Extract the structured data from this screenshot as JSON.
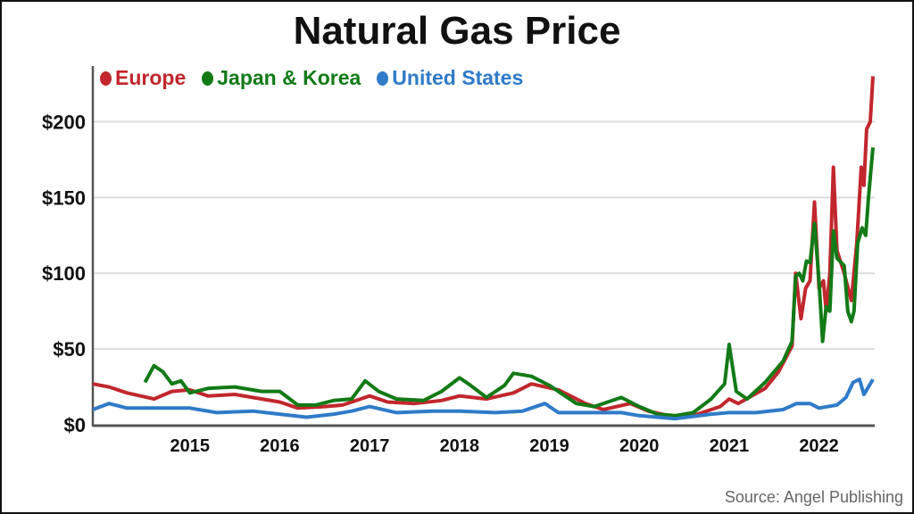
{
  "chart_data": {
    "type": "line",
    "title": "Natural Gas Price",
    "source": "Source: Angel Publishing",
    "xlabel": "",
    "ylabel": "",
    "xlim": [
      2013.92,
      2022.62
    ],
    "ylim": [
      0,
      235
    ],
    "grid": true,
    "legend_placement": "top-left",
    "y_ticks": [
      {
        "v": 0,
        "label": "$0"
      },
      {
        "v": 50,
        "label": "$50"
      },
      {
        "v": 100,
        "label": "$100"
      },
      {
        "v": 150,
        "label": "$150"
      },
      {
        "v": 200,
        "label": "$200"
      }
    ],
    "x_ticks": [
      {
        "v": 2015,
        "label": "2015"
      },
      {
        "v": 2016,
        "label": "2016"
      },
      {
        "v": 2017,
        "label": "2017"
      },
      {
        "v": 2018,
        "label": "2018"
      },
      {
        "v": 2019,
        "label": "2019"
      },
      {
        "v": 2020,
        "label": "2020"
      },
      {
        "v": 2021,
        "label": "2021"
      },
      {
        "v": 2022,
        "label": "2022"
      }
    ],
    "series": [
      {
        "name": "Europe",
        "color": "#c1272d",
        "points": [
          [
            2013.92,
            27
          ],
          [
            2014.1,
            25
          ],
          [
            2014.3,
            21
          ],
          [
            2014.6,
            17
          ],
          [
            2014.8,
            22
          ],
          [
            2015.0,
            23
          ],
          [
            2015.2,
            19
          ],
          [
            2015.5,
            20
          ],
          [
            2015.8,
            17
          ],
          [
            2016.0,
            15
          ],
          [
            2016.2,
            11
          ],
          [
            2016.5,
            12
          ],
          [
            2016.7,
            13
          ],
          [
            2016.9,
            17
          ],
          [
            2017.0,
            19
          ],
          [
            2017.2,
            15
          ],
          [
            2017.5,
            14
          ],
          [
            2017.8,
            16
          ],
          [
            2018.0,
            19
          ],
          [
            2018.3,
            17
          ],
          [
            2018.6,
            21
          ],
          [
            2018.8,
            27
          ],
          [
            2019.1,
            23
          ],
          [
            2019.4,
            14
          ],
          [
            2019.6,
            10
          ],
          [
            2019.9,
            14
          ],
          [
            2020.1,
            9
          ],
          [
            2020.4,
            5
          ],
          [
            2020.6,
            6
          ],
          [
            2020.9,
            12
          ],
          [
            2021.0,
            17
          ],
          [
            2021.1,
            14
          ],
          [
            2021.4,
            24
          ],
          [
            2021.55,
            35
          ],
          [
            2021.7,
            52
          ],
          [
            2021.74,
            100
          ],
          [
            2021.8,
            70
          ],
          [
            2021.85,
            90
          ],
          [
            2021.9,
            95
          ],
          [
            2021.95,
            147
          ],
          [
            2022.0,
            90
          ],
          [
            2022.05,
            95
          ],
          [
            2022.08,
            75
          ],
          [
            2022.12,
            100
          ],
          [
            2022.16,
            170
          ],
          [
            2022.2,
            115
          ],
          [
            2022.28,
            100
          ],
          [
            2022.36,
            82
          ],
          [
            2022.42,
            120
          ],
          [
            2022.47,
            170
          ],
          [
            2022.5,
            158
          ],
          [
            2022.53,
            195
          ],
          [
            2022.57,
            200
          ],
          [
            2022.6,
            230
          ]
        ]
      },
      {
        "name": "Japan & Korea",
        "color": "#127a16",
        "points": [
          [
            2014.5,
            28
          ],
          [
            2014.6,
            39
          ],
          [
            2014.7,
            35
          ],
          [
            2014.8,
            27
          ],
          [
            2014.9,
            29
          ],
          [
            2015.0,
            21
          ],
          [
            2015.2,
            24
          ],
          [
            2015.5,
            25
          ],
          [
            2015.8,
            22
          ],
          [
            2016.0,
            22
          ],
          [
            2016.2,
            13
          ],
          [
            2016.4,
            13
          ],
          [
            2016.6,
            16
          ],
          [
            2016.8,
            17
          ],
          [
            2016.95,
            29
          ],
          [
            2017.1,
            22
          ],
          [
            2017.3,
            17
          ],
          [
            2017.6,
            16
          ],
          [
            2017.8,
            22
          ],
          [
            2018.0,
            31
          ],
          [
            2018.1,
            27
          ],
          [
            2018.3,
            18
          ],
          [
            2018.5,
            26
          ],
          [
            2018.6,
            34
          ],
          [
            2018.8,
            32
          ],
          [
            2019.0,
            26
          ],
          [
            2019.3,
            14
          ],
          [
            2019.5,
            12
          ],
          [
            2019.8,
            18
          ],
          [
            2020.0,
            12
          ],
          [
            2020.2,
            7
          ],
          [
            2020.4,
            6
          ],
          [
            2020.6,
            8
          ],
          [
            2020.8,
            17
          ],
          [
            2020.95,
            27
          ],
          [
            2021.0,
            53
          ],
          [
            2021.08,
            22
          ],
          [
            2021.2,
            17
          ],
          [
            2021.4,
            28
          ],
          [
            2021.6,
            42
          ],
          [
            2021.7,
            55
          ],
          [
            2021.74,
            98
          ],
          [
            2021.78,
            100
          ],
          [
            2021.82,
            95
          ],
          [
            2021.86,
            108
          ],
          [
            2021.9,
            107
          ],
          [
            2021.95,
            133
          ],
          [
            2022.0,
            95
          ],
          [
            2022.04,
            55
          ],
          [
            2022.08,
            78
          ],
          [
            2022.12,
            75
          ],
          [
            2022.16,
            128
          ],
          [
            2022.2,
            110
          ],
          [
            2022.28,
            105
          ],
          [
            2022.32,
            75
          ],
          [
            2022.36,
            68
          ],
          [
            2022.39,
            75
          ],
          [
            2022.43,
            120
          ],
          [
            2022.48,
            130
          ],
          [
            2022.52,
            125
          ],
          [
            2022.55,
            150
          ],
          [
            2022.6,
            183
          ]
        ]
      },
      {
        "name": "United States",
        "color": "#2f7bc8",
        "points": [
          [
            2013.92,
            10
          ],
          [
            2014.1,
            14
          ],
          [
            2014.3,
            11
          ],
          [
            2014.5,
            11
          ],
          [
            2015.0,
            11
          ],
          [
            2015.3,
            8
          ],
          [
            2015.7,
            9
          ],
          [
            2016.0,
            7
          ],
          [
            2016.3,
            5
          ],
          [
            2016.6,
            7
          ],
          [
            2016.8,
            9
          ],
          [
            2017.0,
            12
          ],
          [
            2017.3,
            8
          ],
          [
            2017.7,
            9
          ],
          [
            2018.0,
            9
          ],
          [
            2018.4,
            8
          ],
          [
            2018.7,
            9
          ],
          [
            2018.95,
            14
          ],
          [
            2019.1,
            8
          ],
          [
            2019.5,
            8
          ],
          [
            2019.8,
            8
          ],
          [
            2020.0,
            6
          ],
          [
            2020.4,
            4
          ],
          [
            2020.8,
            7
          ],
          [
            2021.0,
            8
          ],
          [
            2021.3,
            8
          ],
          [
            2021.6,
            10
          ],
          [
            2021.75,
            14
          ],
          [
            2021.9,
            14
          ],
          [
            2022.0,
            11
          ],
          [
            2022.2,
            13
          ],
          [
            2022.3,
            18
          ],
          [
            2022.38,
            28
          ],
          [
            2022.45,
            30
          ],
          [
            2022.5,
            20
          ],
          [
            2022.55,
            25
          ],
          [
            2022.6,
            30
          ]
        ]
      }
    ]
  }
}
